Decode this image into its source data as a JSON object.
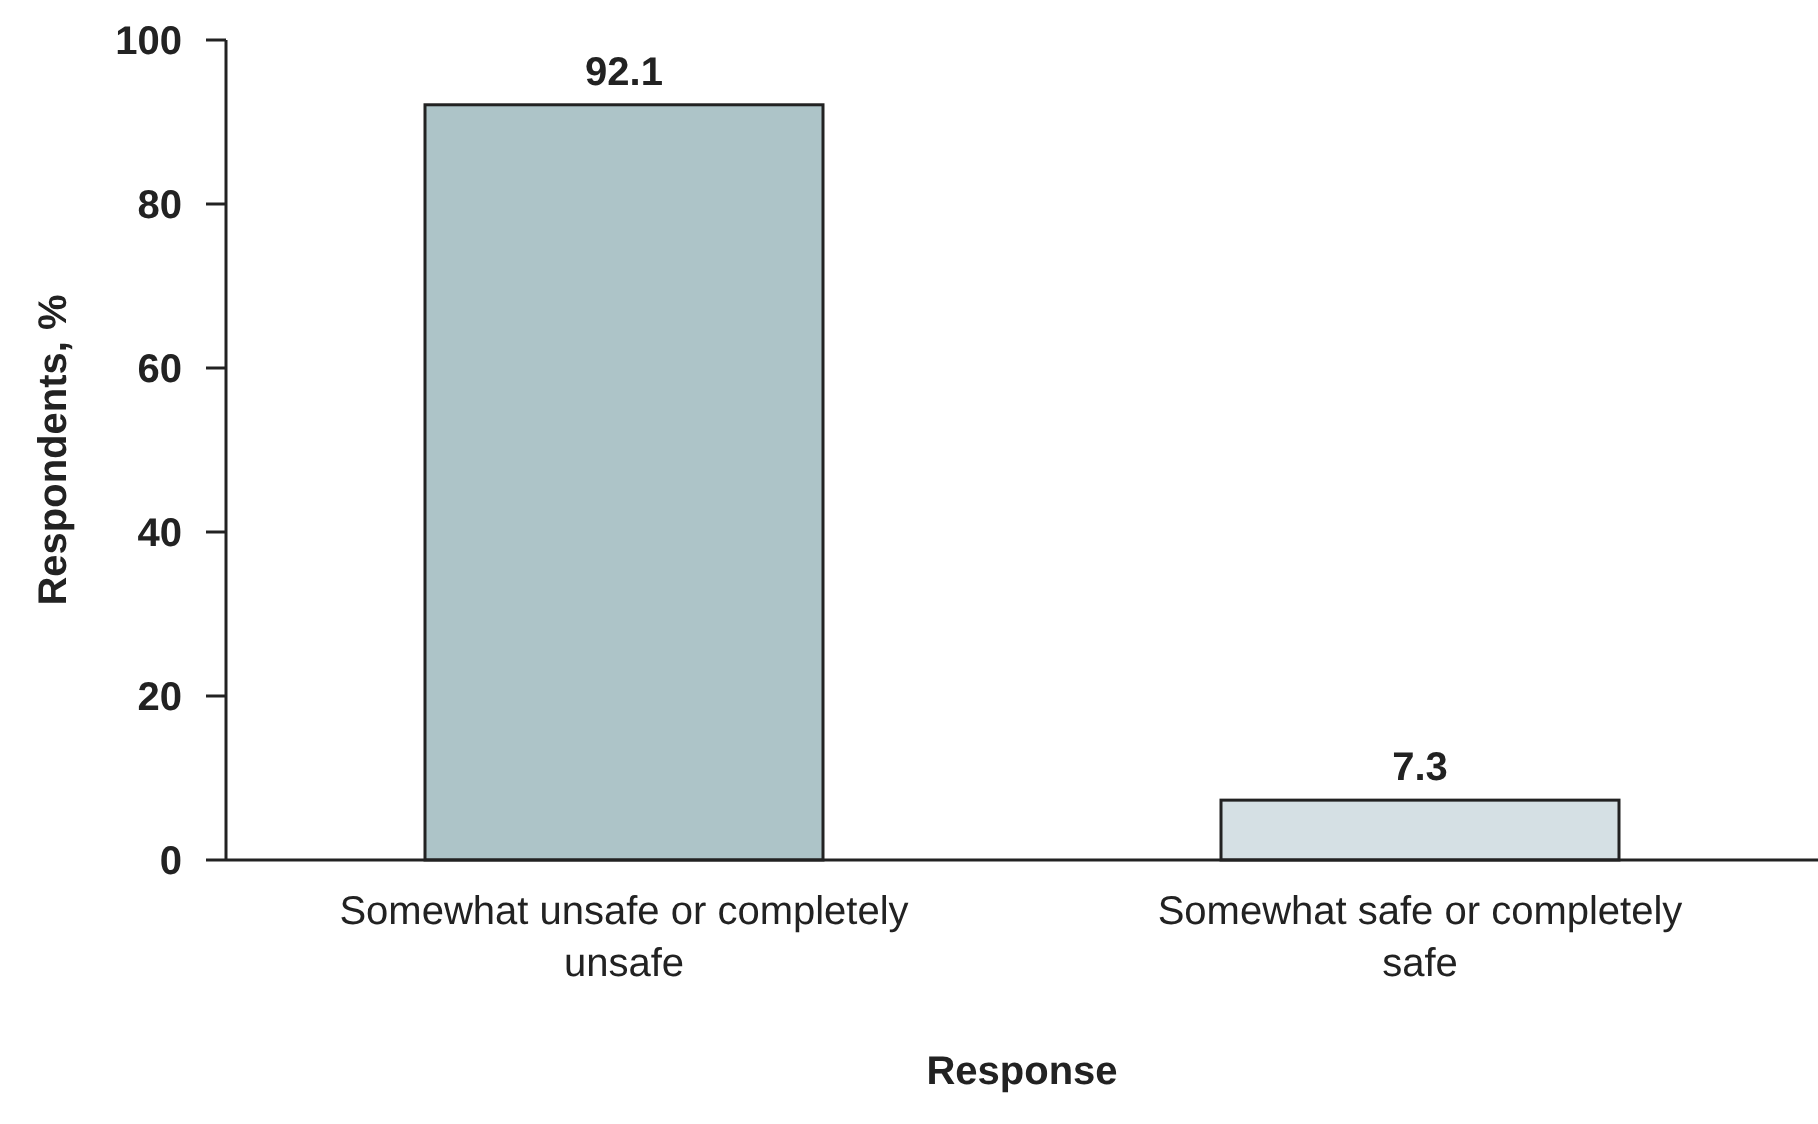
{
  "chart_data": {
    "type": "bar",
    "xlabel": "Response",
    "ylabel": "Respondents, %",
    "categories": [
      "Somewhat unsafe or completely unsafe",
      "Somewhat safe or completely safe"
    ],
    "values": [
      92.1,
      7.3
    ],
    "colors": [
      "#adc4c8",
      "#d5e0e4"
    ],
    "ylim": [
      0,
      100
    ],
    "yticks": [
      0,
      20,
      40,
      60,
      80,
      100
    ],
    "data_labels": true
  }
}
